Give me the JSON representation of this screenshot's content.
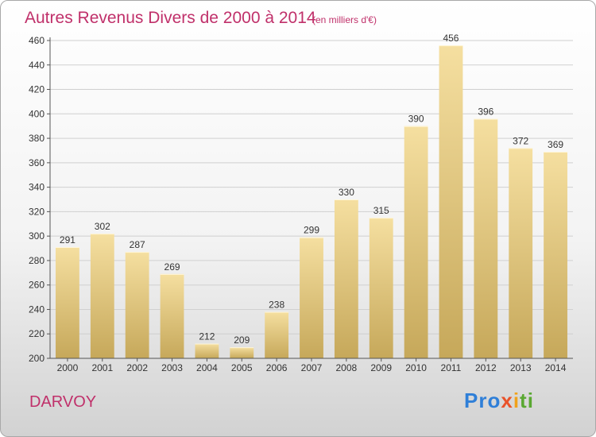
{
  "title": "Autres Revenus Divers de 2000 à 2014",
  "subtitle": "(en milliers d'€)",
  "location": "DARVOY",
  "logo": {
    "text": "Proxiti",
    "parts": [
      "Pro",
      "x",
      "i",
      "ti"
    ]
  },
  "colors": {
    "title": "#c0306a",
    "bar_top": "#f5dfa0",
    "bar_bottom": "#c6a85a",
    "grid": "#d0d0d0"
  },
  "chart_data": {
    "type": "bar",
    "title": "Autres Revenus Divers de 2000 à 2014",
    "subtitle": "(en milliers d'€)",
    "xlabel": "",
    "ylabel": "",
    "categories": [
      "2000",
      "2001",
      "2002",
      "2003",
      "2004",
      "2005",
      "2006",
      "2007",
      "2008",
      "2009",
      "2010",
      "2011",
      "2012",
      "2013",
      "2014"
    ],
    "values": [
      291,
      302,
      287,
      269,
      212,
      209,
      238,
      299,
      330,
      315,
      390,
      456,
      396,
      372,
      369
    ],
    "ylim": [
      200,
      460
    ],
    "yticks": [
      200,
      220,
      240,
      260,
      280,
      300,
      320,
      340,
      360,
      380,
      400,
      420,
      440,
      460
    ],
    "grid": true,
    "legend": "none",
    "data_labels": true
  }
}
